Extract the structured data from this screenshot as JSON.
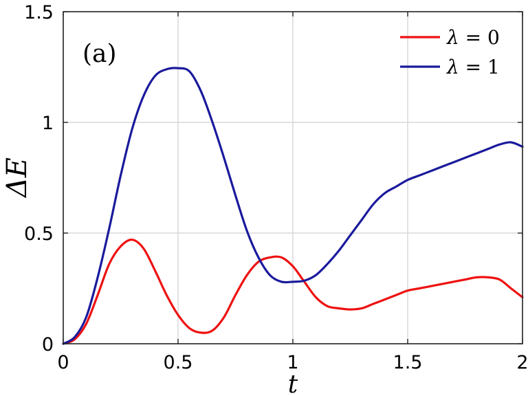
{
  "chart_data": {
    "type": "line",
    "panel_label": "(a)",
    "xlabel": "t",
    "ylabel": "ΔE",
    "xlim": [
      0,
      2
    ],
    "ylim": [
      0,
      1.5
    ],
    "x_ticks": [
      "0",
      "0.5",
      "1",
      "1.5",
      "2"
    ],
    "y_ticks": [
      "0",
      "0.5",
      "1",
      "1.5"
    ],
    "grid": true,
    "legend_position": "top-right",
    "series": [
      {
        "name": "λ = 0",
        "name_symbol": "λ",
        "name_value": " = 0",
        "color": "#ee1111",
        "x": [
          0,
          0.05,
          0.1,
          0.15,
          0.2,
          0.25,
          0.3,
          0.35,
          0.4,
          0.45,
          0.5,
          0.55,
          0.6,
          0.65,
          0.7,
          0.75,
          0.8,
          0.85,
          0.9,
          0.95,
          1.0,
          1.05,
          1.1,
          1.15,
          1.2,
          1.25,
          1.3,
          1.35,
          1.4,
          1.45,
          1.5,
          1.55,
          1.6,
          1.65,
          1.7,
          1.75,
          1.8,
          1.85,
          1.9,
          1.95,
          2.0
        ],
        "y": [
          0,
          0.02,
          0.09,
          0.22,
          0.36,
          0.44,
          0.47,
          0.43,
          0.33,
          0.22,
          0.13,
          0.07,
          0.05,
          0.06,
          0.12,
          0.22,
          0.31,
          0.37,
          0.39,
          0.39,
          0.35,
          0.28,
          0.21,
          0.17,
          0.16,
          0.155,
          0.16,
          0.18,
          0.2,
          0.22,
          0.24,
          0.25,
          0.26,
          0.27,
          0.28,
          0.29,
          0.3,
          0.3,
          0.29,
          0.25,
          0.21
        ]
      },
      {
        "name": "λ = 1",
        "name_symbol": "λ",
        "name_value": " = 1",
        "color": "#1a1a9c",
        "x": [
          0,
          0.05,
          0.1,
          0.15,
          0.2,
          0.25,
          0.3,
          0.35,
          0.4,
          0.45,
          0.5,
          0.55,
          0.6,
          0.65,
          0.7,
          0.75,
          0.8,
          0.85,
          0.9,
          0.95,
          1.0,
          1.05,
          1.1,
          1.15,
          1.2,
          1.25,
          1.3,
          1.35,
          1.4,
          1.45,
          1.5,
          1.55,
          1.6,
          1.65,
          1.7,
          1.75,
          1.8,
          1.85,
          1.9,
          1.95,
          2.0
        ],
        "y": [
          0,
          0.03,
          0.12,
          0.3,
          0.52,
          0.76,
          0.97,
          1.12,
          1.21,
          1.24,
          1.245,
          1.23,
          1.14,
          1.0,
          0.84,
          0.67,
          0.51,
          0.39,
          0.31,
          0.28,
          0.28,
          0.285,
          0.31,
          0.36,
          0.42,
          0.49,
          0.56,
          0.63,
          0.68,
          0.71,
          0.74,
          0.76,
          0.78,
          0.8,
          0.82,
          0.84,
          0.86,
          0.88,
          0.9,
          0.91,
          0.89
        ]
      }
    ]
  }
}
